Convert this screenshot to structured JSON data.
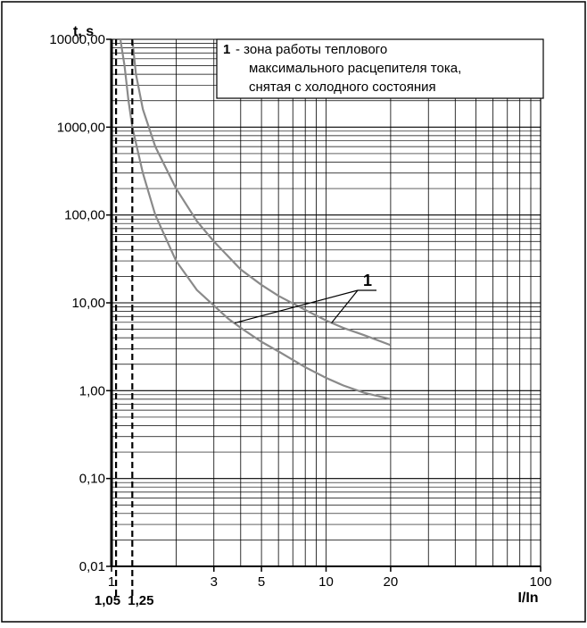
{
  "chart_data": {
    "type": "line",
    "xlabel": "I/In",
    "ylabel": "t, s",
    "x_scale": "log",
    "y_scale": "log",
    "xlim": [
      1,
      100
    ],
    "ylim": [
      0.01,
      10000
    ],
    "grid": true,
    "x_ticks": [
      "1",
      "3",
      "5",
      "10",
      "20",
      "100"
    ],
    "x_tick_values": [
      1,
      3,
      5,
      10,
      20,
      100
    ],
    "x_special_ticks": [
      "1,05",
      "1,25"
    ],
    "x_special_tick_values": [
      1.05,
      1.25
    ],
    "y_ticks": [
      "0,01",
      "0,10",
      "1,00",
      "10,00",
      "100,00",
      "1000,00",
      "10000,00"
    ],
    "y_tick_values": [
      0.01,
      0.1,
      1,
      10,
      100,
      1000,
      10000
    ],
    "legend": {
      "number": "1",
      "text_lines": [
        "- зона работы теплового",
        "максимального расцепителя тока,",
        "снятая с холодного состояния"
      ],
      "placement": "top-right"
    },
    "callout_label": "1",
    "series": [
      {
        "x": [
          1.1,
          1.15,
          1.2,
          1.25,
          1.4,
          1.6,
          2.0,
          2.5,
          3,
          3.5,
          4,
          5,
          6,
          8,
          10,
          12,
          15,
          20
        ],
        "y": [
          10000,
          5000,
          2000,
          1000,
          300,
          100,
          30,
          14,
          9.3,
          6.6,
          5.2,
          3.6,
          2.8,
          1.85,
          1.4,
          1.15,
          0.95,
          0.8
        ]
      },
      {
        "x": [
          1.25,
          1.3,
          1.4,
          1.6,
          2.0,
          2.5,
          3,
          4,
          5,
          6,
          8,
          10,
          12,
          15,
          20
        ],
        "y": [
          10000,
          4000,
          1600,
          600,
          200,
          85,
          50,
          24,
          16,
          12,
          8.3,
          6.3,
          5.2,
          4.3,
          3.3
        ]
      }
    ]
  }
}
